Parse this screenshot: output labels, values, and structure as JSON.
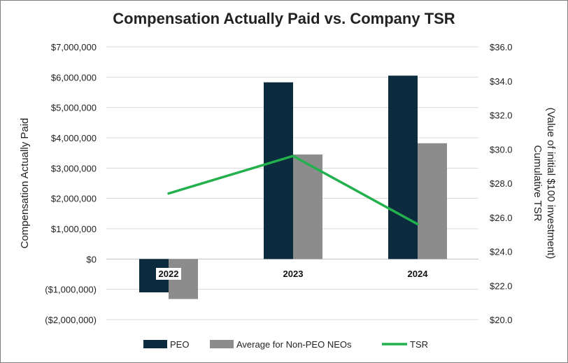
{
  "chart_data": {
    "type": "bar",
    "title": "Compensation Actually Paid vs. Company TSR",
    "categories": [
      "2022",
      "2023",
      "2024"
    ],
    "series": [
      {
        "name": "PEO",
        "type": "bar",
        "axis": "left",
        "color": "#0d2b3e",
        "values": [
          -1100000,
          5830000,
          6050000
        ]
      },
      {
        "name": "Average for Non-PEO NEOs",
        "type": "bar",
        "axis": "left",
        "color": "#8c8c8c",
        "values": [
          -1320000,
          3450000,
          3820000
        ]
      },
      {
        "name": "TSR",
        "type": "line",
        "axis": "right",
        "color": "#22b14c",
        "values": [
          27.4,
          29.6,
          25.6
        ]
      }
    ],
    "ylabel": "Compensation Actually Paid",
    "ylabel_right_line1": "Cumulative TSR",
    "ylabel_right_line2": "(Value of initial $100 investment)",
    "ylim": [
      -2000000,
      7000000
    ],
    "ylim_right": [
      20,
      36
    ],
    "yticks_left": [
      "$7,000,000",
      "$6,000,000",
      "$5,000,000",
      "$4,000,000",
      "$3,000,000",
      "$2,000,000",
      "$1,000,000",
      "$0",
      "($1,000,000)",
      "($2,000,000)"
    ],
    "yticks_right": [
      "$36.0",
      "$34.0",
      "$32.0",
      "$30.0",
      "$28.0",
      "$26.0",
      "$24.0",
      "$22.0",
      "$20.0"
    ],
    "grid": true,
    "legend_position": "bottom"
  }
}
